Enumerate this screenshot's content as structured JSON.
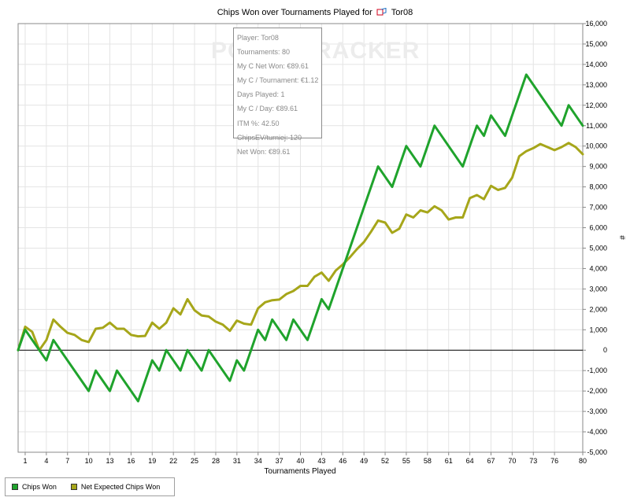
{
  "chart_data": {
    "type": "line",
    "title": "Chips Won over Tournaments Played for",
    "player": "Tor08",
    "xlabel": "Tournaments Played",
    "ylabel": "#",
    "xlim": [
      0,
      80
    ],
    "ylim": [
      -5000,
      16000
    ],
    "x_ticks": [
      1,
      4,
      7,
      10,
      13,
      16,
      19,
      22,
      25,
      28,
      31,
      34,
      37,
      40,
      43,
      46,
      49,
      52,
      55,
      58,
      61,
      64,
      67,
      70,
      73,
      76,
      80
    ],
    "y_ticks": [
      "16,000",
      "15,000",
      "14,000",
      "13,000",
      "12,000",
      "11,000",
      "10,000",
      "9,000",
      "8,000",
      "7,000",
      "6,000",
      "5,000",
      "4,000",
      "3,000",
      "2,000",
      "1,000",
      "0",
      "-1,000",
      "-2,000",
      "-3,000",
      "-4,000",
      "-5,000"
    ],
    "grid": true,
    "legend": "bottom-left",
    "series": [
      {
        "name": "Chips Won",
        "color": "#1fa32c",
        "points": [
          [
            0,
            0
          ],
          [
            1,
            1000
          ],
          [
            4,
            -500
          ],
          [
            5,
            500
          ],
          [
            10,
            -2000
          ],
          [
            11,
            -1000
          ],
          [
            13,
            -2000
          ],
          [
            14,
            -1000
          ],
          [
            17,
            -2500
          ],
          [
            19,
            -500
          ],
          [
            20,
            -1000
          ],
          [
            21,
            0
          ],
          [
            23,
            -1000
          ],
          [
            24,
            0
          ],
          [
            26,
            -1000
          ],
          [
            27,
            0
          ],
          [
            30,
            -1500
          ],
          [
            31,
            -500
          ],
          [
            32,
            -1000
          ],
          [
            34,
            1000
          ],
          [
            35,
            500
          ],
          [
            36,
            1500
          ],
          [
            38,
            500
          ],
          [
            39,
            1500
          ],
          [
            41,
            500
          ],
          [
            43,
            2500
          ],
          [
            44,
            2000
          ],
          [
            51,
            9000
          ],
          [
            53,
            8000
          ],
          [
            55,
            10000
          ],
          [
            57,
            9000
          ],
          [
            59,
            11000
          ],
          [
            63,
            9000
          ],
          [
            65,
            11000
          ],
          [
            66,
            10500
          ],
          [
            67,
            11500
          ],
          [
            69,
            10500
          ],
          [
            72,
            13500
          ],
          [
            77,
            11000
          ],
          [
            78,
            12000
          ],
          [
            80,
            11000
          ]
        ]
      },
      {
        "name": "Net Expected Chips Won",
        "color": "#a6a61a",
        "points": [
          [
            0,
            0
          ],
          [
            1,
            1150
          ],
          [
            2,
            900
          ],
          [
            3,
            0
          ],
          [
            4,
            500
          ],
          [
            5,
            1500
          ],
          [
            6,
            1150
          ],
          [
            7,
            850
          ],
          [
            8,
            750
          ],
          [
            9,
            500
          ],
          [
            10,
            400
          ],
          [
            11,
            1050
          ],
          [
            12,
            1100
          ],
          [
            13,
            1350
          ],
          [
            14,
            1050
          ],
          [
            15,
            1050
          ],
          [
            16,
            750
          ],
          [
            17,
            680
          ],
          [
            18,
            700
          ],
          [
            19,
            1350
          ],
          [
            20,
            1050
          ],
          [
            21,
            1350
          ],
          [
            22,
            2050
          ],
          [
            23,
            1750
          ],
          [
            24,
            2500
          ],
          [
            25,
            1950
          ],
          [
            26,
            1700
          ],
          [
            27,
            1650
          ],
          [
            28,
            1400
          ],
          [
            29,
            1250
          ],
          [
            30,
            950
          ],
          [
            31,
            1450
          ],
          [
            32,
            1300
          ],
          [
            33,
            1250
          ],
          [
            34,
            2050
          ],
          [
            35,
            2350
          ],
          [
            36,
            2450
          ],
          [
            37,
            2480
          ],
          [
            38,
            2750
          ],
          [
            39,
            2900
          ],
          [
            40,
            3150
          ],
          [
            41,
            3150
          ],
          [
            42,
            3600
          ],
          [
            43,
            3800
          ],
          [
            44,
            3400
          ],
          [
            45,
            3900
          ],
          [
            46,
            4200
          ],
          [
            47,
            4550
          ],
          [
            48,
            4950
          ],
          [
            49,
            5300
          ],
          [
            50,
            5800
          ],
          [
            51,
            6350
          ],
          [
            52,
            6250
          ],
          [
            53,
            5750
          ],
          [
            54,
            5950
          ],
          [
            55,
            6650
          ],
          [
            56,
            6500
          ],
          [
            57,
            6850
          ],
          [
            58,
            6750
          ],
          [
            59,
            7050
          ],
          [
            60,
            6850
          ],
          [
            61,
            6400
          ],
          [
            62,
            6500
          ],
          [
            63,
            6500
          ],
          [
            64,
            7450
          ],
          [
            65,
            7600
          ],
          [
            66,
            7400
          ],
          [
            67,
            8050
          ],
          [
            68,
            7850
          ],
          [
            69,
            7950
          ],
          [
            70,
            8450
          ],
          [
            71,
            9500
          ],
          [
            72,
            9750
          ],
          [
            73,
            9900
          ],
          [
            74,
            10100
          ],
          [
            75,
            9950
          ],
          [
            76,
            9800
          ],
          [
            77,
            9950
          ],
          [
            78,
            10150
          ],
          [
            79,
            9950
          ],
          [
            80,
            9600
          ]
        ]
      }
    ]
  },
  "tooltip": {
    "lines": [
      "Player: Tor08",
      "Tournaments: 80",
      "My C Net Won: €89.61",
      "My C / Tournament: €1.12",
      "Days Played: 1",
      "My C / Day: €89.61",
      "ITM %: 42.50",
      "ChipsEV/turniej: 120",
      "Net Won: €89.61"
    ]
  },
  "watermark": "POKERTRACKER",
  "colors": {
    "grid": "#e4e4e4",
    "axis": "#888888",
    "zero_line": "#000000"
  }
}
